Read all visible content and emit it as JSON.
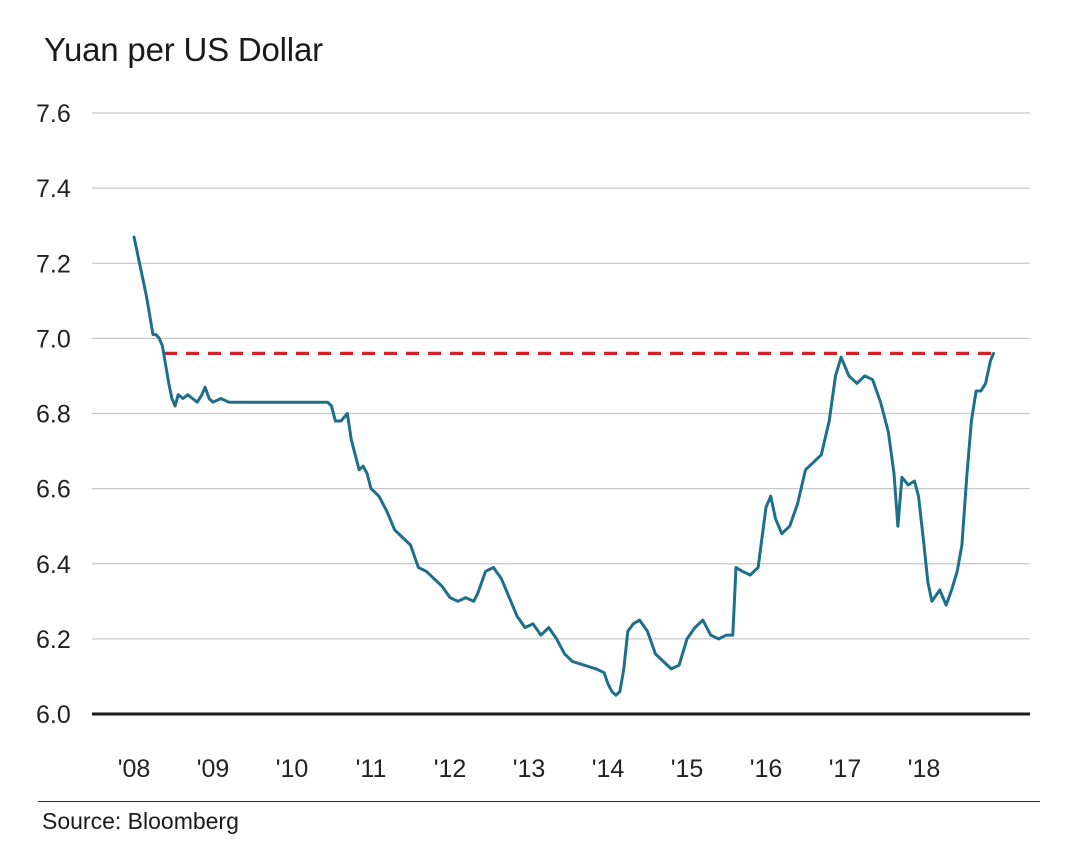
{
  "chart_data": {
    "type": "line",
    "title": "Yuan per US Dollar",
    "source": "Source: Bloomberg",
    "xlabel": "",
    "ylabel": "",
    "ylim": [
      6.0,
      7.6
    ],
    "xlim": [
      2008.0,
      2019.0
    ],
    "y_ticks": [
      "7.6",
      "7.4",
      "7.2",
      "7.0",
      "6.8",
      "6.6",
      "6.4",
      "6.2",
      "6.0"
    ],
    "x_ticks": [
      "'08",
      "'09",
      "'10",
      "'11",
      "'12",
      "'13",
      "'14",
      "'15",
      "'16",
      "'17",
      "'18"
    ],
    "grid": true,
    "colors": {
      "line": "#1f6e8c",
      "reference": "#d42027",
      "grid": "#c8c8c8",
      "baseline": "#1a1a1a"
    },
    "reference_line": {
      "y": 6.96,
      "x_start": 2008.38,
      "x_end": 2018.85,
      "style": "dashed"
    },
    "series": [
      {
        "name": "",
        "points": [
          [
            2008.0,
            7.27
          ],
          [
            2008.04,
            7.23
          ],
          [
            2008.08,
            7.19
          ],
          [
            2008.12,
            7.15
          ],
          [
            2008.16,
            7.11
          ],
          [
            2008.2,
            7.06
          ],
          [
            2008.24,
            7.01
          ],
          [
            2008.28,
            7.01
          ],
          [
            2008.32,
            7.0
          ],
          [
            2008.36,
            6.98
          ],
          [
            2008.4,
            6.93
          ],
          [
            2008.44,
            6.88
          ],
          [
            2008.48,
            6.84
          ],
          [
            2008.52,
            6.82
          ],
          [
            2008.56,
            6.85
          ],
          [
            2008.62,
            6.84
          ],
          [
            2008.68,
            6.85
          ],
          [
            2008.74,
            6.84
          ],
          [
            2008.8,
            6.83
          ],
          [
            2008.86,
            6.85
          ],
          [
            2008.9,
            6.87
          ],
          [
            2008.95,
            6.84
          ],
          [
            2009.0,
            6.83
          ],
          [
            2009.1,
            6.84
          ],
          [
            2009.2,
            6.83
          ],
          [
            2009.3,
            6.83
          ],
          [
            2009.4,
            6.83
          ],
          [
            2009.5,
            6.83
          ],
          [
            2009.7,
            6.83
          ],
          [
            2009.9,
            6.83
          ],
          [
            2010.1,
            6.83
          ],
          [
            2010.3,
            6.83
          ],
          [
            2010.45,
            6.83
          ],
          [
            2010.5,
            6.82
          ],
          [
            2010.55,
            6.78
          ],
          [
            2010.62,
            6.78
          ],
          [
            2010.7,
            6.8
          ],
          [
            2010.75,
            6.73
          ],
          [
            2010.8,
            6.69
          ],
          [
            2010.85,
            6.65
          ],
          [
            2010.9,
            6.66
          ],
          [
            2010.95,
            6.64
          ],
          [
            2011.0,
            6.6
          ],
          [
            2011.1,
            6.58
          ],
          [
            2011.2,
            6.54
          ],
          [
            2011.3,
            6.49
          ],
          [
            2011.4,
            6.47
          ],
          [
            2011.5,
            6.45
          ],
          [
            2011.6,
            6.39
          ],
          [
            2011.7,
            6.38
          ],
          [
            2011.8,
            6.36
          ],
          [
            2011.9,
            6.34
          ],
          [
            2012.0,
            6.31
          ],
          [
            2012.1,
            6.3
          ],
          [
            2012.2,
            6.31
          ],
          [
            2012.3,
            6.3
          ],
          [
            2012.35,
            6.32
          ],
          [
            2012.45,
            6.38
          ],
          [
            2012.55,
            6.39
          ],
          [
            2012.65,
            6.36
          ],
          [
            2012.75,
            6.31
          ],
          [
            2012.85,
            6.26
          ],
          [
            2012.95,
            6.23
          ],
          [
            2013.05,
            6.24
          ],
          [
            2013.15,
            6.21
          ],
          [
            2013.25,
            6.23
          ],
          [
            2013.35,
            6.2
          ],
          [
            2013.45,
            6.16
          ],
          [
            2013.55,
            6.14
          ],
          [
            2013.7,
            6.13
          ],
          [
            2013.85,
            6.12
          ],
          [
            2013.95,
            6.11
          ],
          [
            2014.0,
            6.08
          ],
          [
            2014.05,
            6.06
          ],
          [
            2014.1,
            6.05
          ],
          [
            2014.15,
            6.06
          ],
          [
            2014.2,
            6.12
          ],
          [
            2014.25,
            6.22
          ],
          [
            2014.32,
            6.24
          ],
          [
            2014.4,
            6.25
          ],
          [
            2014.5,
            6.22
          ],
          [
            2014.6,
            6.16
          ],
          [
            2014.7,
            6.14
          ],
          [
            2014.8,
            6.12
          ],
          [
            2014.9,
            6.13
          ],
          [
            2015.0,
            6.2
          ],
          [
            2015.1,
            6.23
          ],
          [
            2015.2,
            6.25
          ],
          [
            2015.3,
            6.21
          ],
          [
            2015.4,
            6.2
          ],
          [
            2015.5,
            6.21
          ],
          [
            2015.58,
            6.21
          ],
          [
            2015.62,
            6.39
          ],
          [
            2015.7,
            6.38
          ],
          [
            2015.8,
            6.37
          ],
          [
            2015.9,
            6.39
          ],
          [
            2016.0,
            6.55
          ],
          [
            2016.06,
            6.58
          ],
          [
            2016.12,
            6.52
          ],
          [
            2016.2,
            6.48
          ],
          [
            2016.3,
            6.5
          ],
          [
            2016.4,
            6.56
          ],
          [
            2016.5,
            6.65
          ],
          [
            2016.6,
            6.67
          ],
          [
            2016.7,
            6.69
          ],
          [
            2016.8,
            6.78
          ],
          [
            2016.88,
            6.9
          ],
          [
            2016.95,
            6.95
          ],
          [
            2017.05,
            6.9
          ],
          [
            2017.15,
            6.88
          ],
          [
            2017.25,
            6.9
          ],
          [
            2017.35,
            6.89
          ],
          [
            2017.45,
            6.83
          ],
          [
            2017.55,
            6.75
          ],
          [
            2017.62,
            6.64
          ],
          [
            2017.67,
            6.5
          ],
          [
            2017.72,
            6.63
          ],
          [
            2017.8,
            6.61
          ],
          [
            2017.88,
            6.62
          ],
          [
            2017.93,
            6.58
          ],
          [
            2018.0,
            6.45
          ],
          [
            2018.05,
            6.35
          ],
          [
            2018.1,
            6.3
          ],
          [
            2018.2,
            6.33
          ],
          [
            2018.28,
            6.29
          ],
          [
            2018.35,
            6.33
          ],
          [
            2018.42,
            6.38
          ],
          [
            2018.48,
            6.45
          ],
          [
            2018.54,
            6.63
          ],
          [
            2018.6,
            6.78
          ],
          [
            2018.66,
            6.86
          ],
          [
            2018.72,
            6.86
          ],
          [
            2018.78,
            6.88
          ],
          [
            2018.84,
            6.94
          ],
          [
            2018.88,
            6.96
          ]
        ]
      }
    ]
  }
}
